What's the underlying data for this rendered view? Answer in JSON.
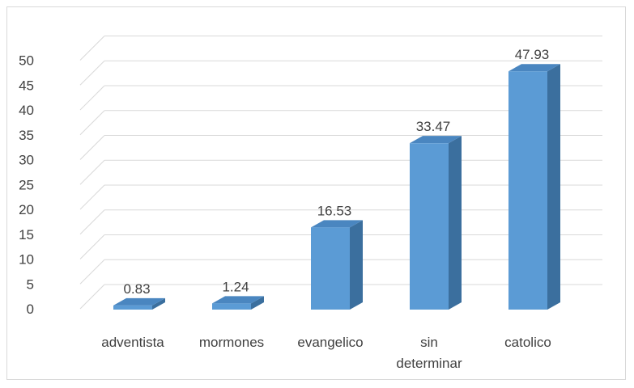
{
  "chart_data": {
    "type": "bar",
    "style": "3d-column",
    "categories": [
      "adventista",
      "mormones",
      "evangelico",
      "sin determinar",
      "catolico"
    ],
    "values": [
      0.83,
      1.24,
      16.53,
      33.47,
      47.93
    ],
    "data_labels": [
      "0.83",
      "1.24",
      "16.53",
      "33.47",
      "47.93"
    ],
    "title": "",
    "xlabel": "",
    "ylabel": "",
    "ylim": [
      0,
      50
    ],
    "y_ticks": [
      "0",
      "5",
      "10",
      "15",
      "20",
      "25",
      "30",
      "35",
      "40",
      "45",
      "50"
    ],
    "grid": true,
    "legend": "none",
    "colors": {
      "bar_front": "#5b9bd5",
      "bar_side": "#3b6f9e",
      "bar_top": "#4a86c0",
      "grid": "#d9d9d9",
      "text": "#404040"
    }
  }
}
